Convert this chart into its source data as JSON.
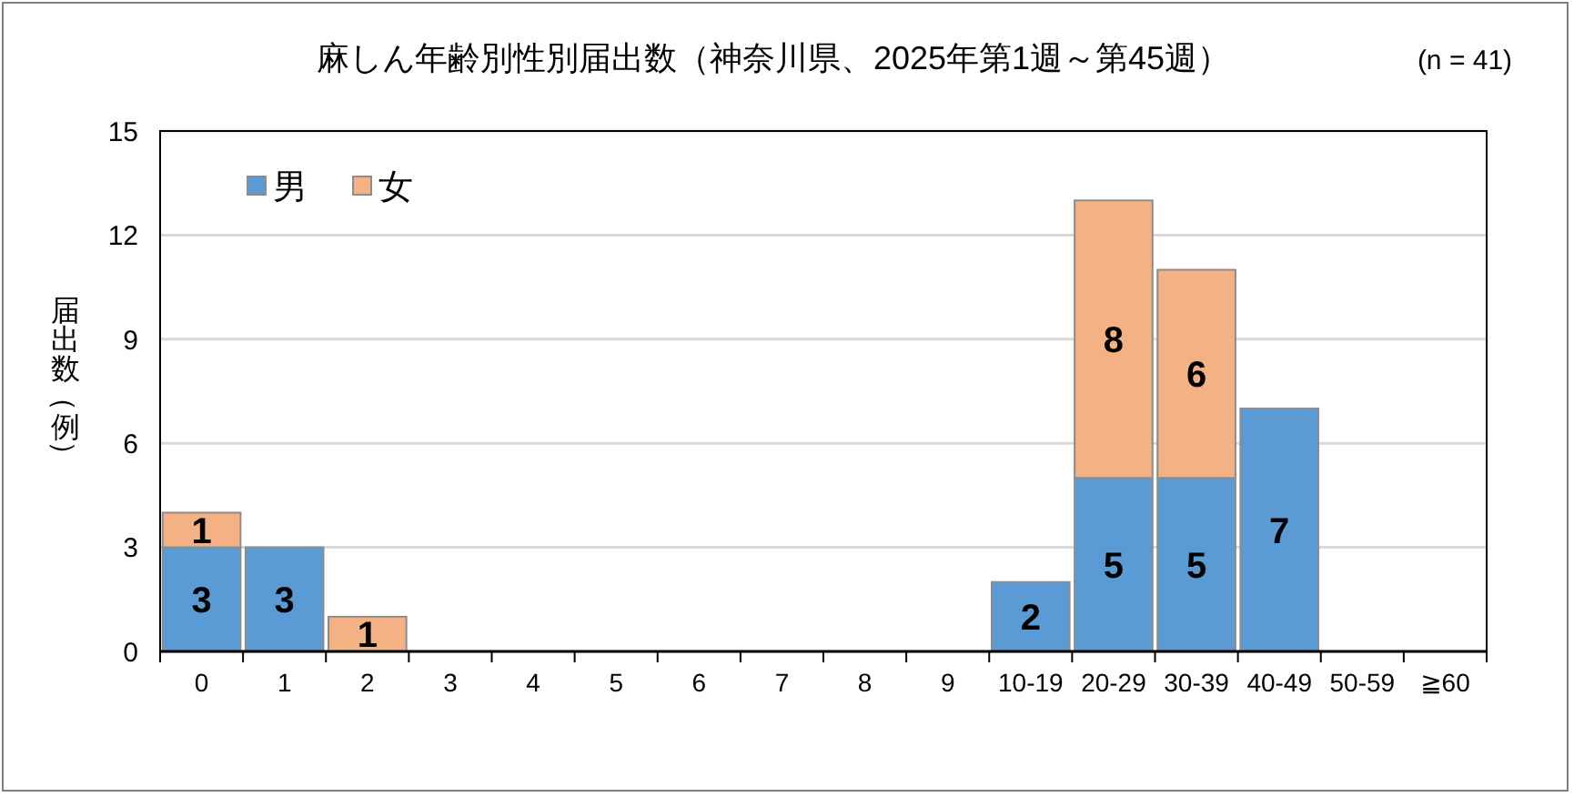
{
  "chart_data": {
    "type": "bar",
    "stacked": true,
    "title": "麻しん年齢別性別届出数（神奈川県、2025年第1週～第45週）",
    "ylabel": "届出数（例）",
    "annotations": [
      "(n = 41)"
    ],
    "categories": [
      "0",
      "1",
      "2",
      "3",
      "4",
      "5",
      "6",
      "7",
      "8",
      "9",
      "10-19",
      "20-29",
      "30-39",
      "40-49",
      "50-59",
      "≧60"
    ],
    "series": [
      {
        "name": "男",
        "color": "#5b9bd5",
        "values": [
          3,
          3,
          0,
          0,
          0,
          0,
          0,
          0,
          0,
          0,
          2,
          5,
          5,
          7,
          0,
          0
        ],
        "value_labels": [
          "3",
          "3",
          null,
          null,
          null,
          null,
          null,
          null,
          null,
          null,
          "2",
          "5",
          "5",
          "7",
          null,
          null
        ]
      },
      {
        "name": "女",
        "color": "#f4b183",
        "values": [
          1,
          0,
          1,
          0,
          0,
          0,
          0,
          0,
          0,
          0,
          0,
          8,
          6,
          0,
          0,
          0
        ],
        "value_labels": [
          "1",
          null,
          "1",
          null,
          null,
          null,
          null,
          null,
          null,
          null,
          null,
          "8",
          "6",
          null,
          null,
          null
        ]
      }
    ],
    "ylim": [
      0,
      15
    ],
    "yticks": [
      0,
      3,
      6,
      9,
      12,
      15
    ],
    "grid": "y",
    "legend": "top left"
  }
}
